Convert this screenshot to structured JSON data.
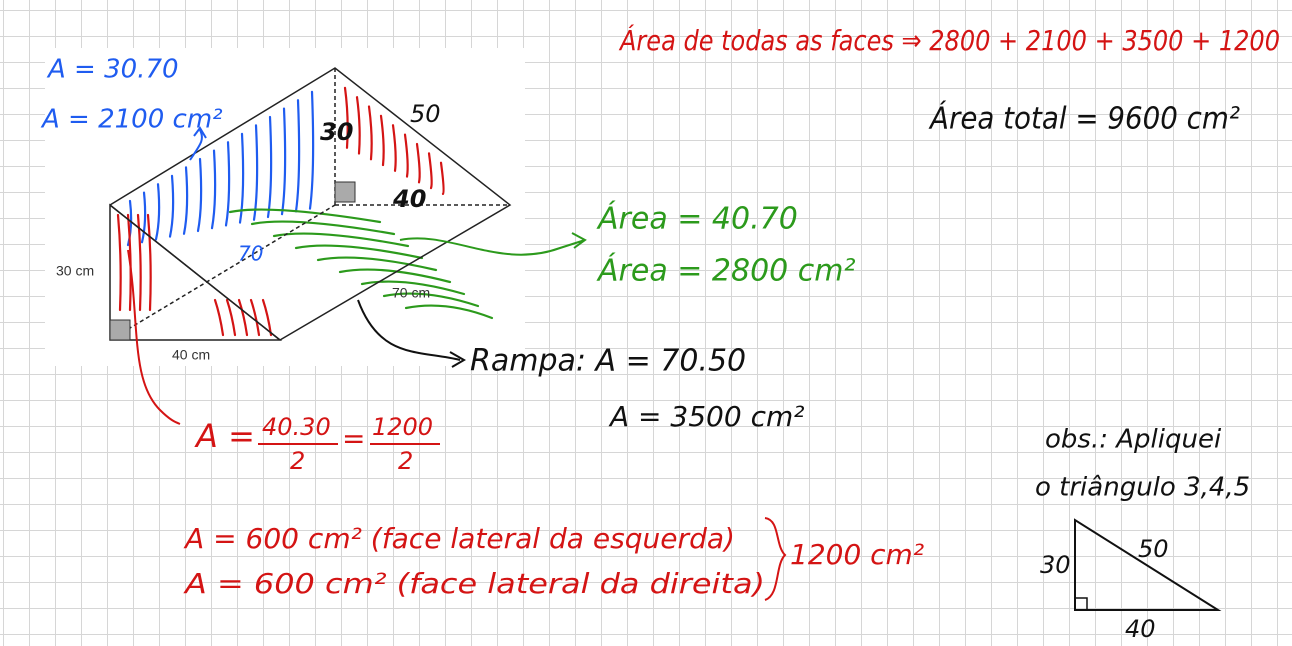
{
  "top_right": {
    "faces_sum": "Área de todas as faces ⇒ 2800 + 2100 + 3500 + 1200",
    "total": "Área total = 9600 cm²"
  },
  "blue_notes": [
    "A = 30.70",
    "A = 2100 cm²"
  ],
  "figure": {
    "printed_labels": [
      "30 cm",
      "40 cm",
      "70 cm"
    ],
    "handwritten_labels": [
      "30",
      "50",
      "40",
      "70"
    ]
  },
  "green_notes": [
    "Área = 40.70",
    "Área = 2800 cm²"
  ],
  "ramp_notes": [
    "Rampa: A = 70.50",
    "A = 3500 cm²"
  ],
  "triangle_area": {
    "lhs": "A =",
    "num1": "40.30",
    "den1": "2",
    "eq": "=",
    "num2": "1200",
    "den2": "2"
  },
  "lateral_faces": [
    "A = 600 cm² (face lateral da esquerda)",
    "A = 600 cm² (face lateral da direita)"
  ],
  "lateral_total": "1200 cm²",
  "obs": [
    "obs.: Apliquei",
    "o triângulo 3,4,5"
  ],
  "triangle": {
    "labels": [
      "30",
      "50",
      "40"
    ]
  }
}
